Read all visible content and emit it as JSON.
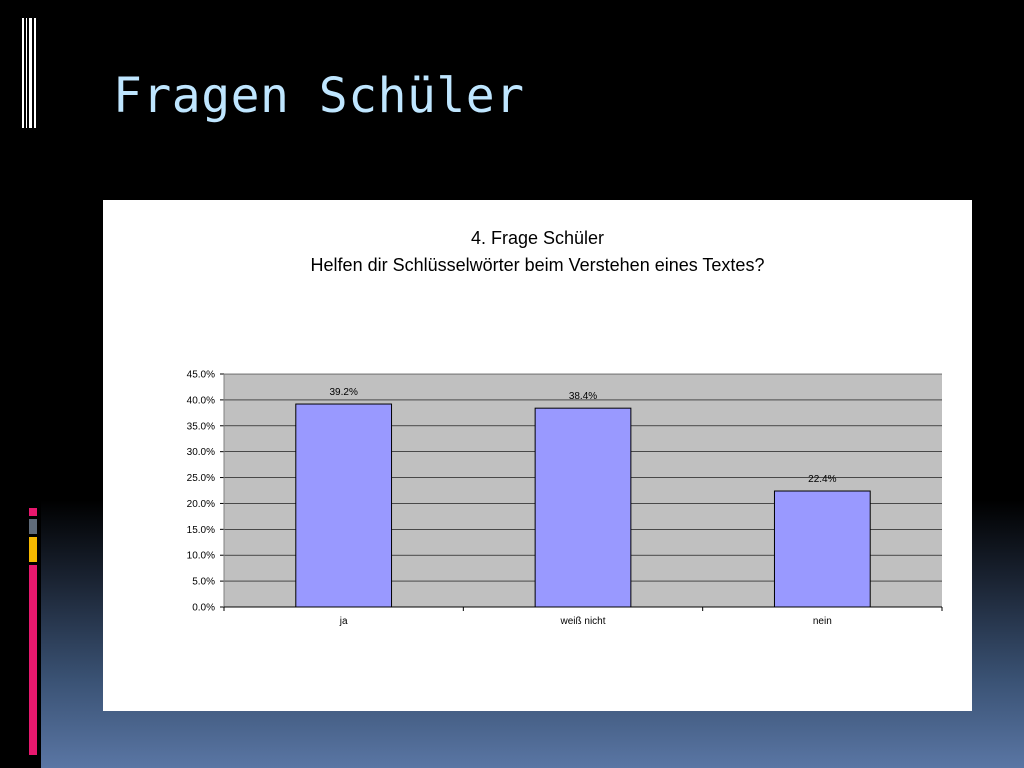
{
  "slide": {
    "title": "Fragen Schüler"
  },
  "chart_data": {
    "type": "bar",
    "title": "4. Frage Schüler",
    "subtitle": "Helfen dir Schlüsselwörter beim Verstehen eines Textes?",
    "categories": [
      "ja",
      "weiß nicht",
      "nein"
    ],
    "values": [
      39.2,
      38.4,
      22.4
    ],
    "value_labels": [
      "39.2%",
      "38.4%",
      "22.4%"
    ],
    "ylim": [
      0,
      45
    ],
    "yticks": [
      "0.0%",
      "5.0%",
      "10.0%",
      "15.0%",
      "20.0%",
      "25.0%",
      "30.0%",
      "35.0%",
      "40.0%",
      "45.0%"
    ],
    "ytick_values": [
      0,
      5,
      10,
      15,
      20,
      25,
      30,
      35,
      40,
      45
    ],
    "grid": true,
    "colors": {
      "bar_fill": "#9999ff",
      "bar_stroke": "#000000",
      "plot_background": "#c0c0c0",
      "gridline": "#000000",
      "text": "#000000"
    }
  }
}
